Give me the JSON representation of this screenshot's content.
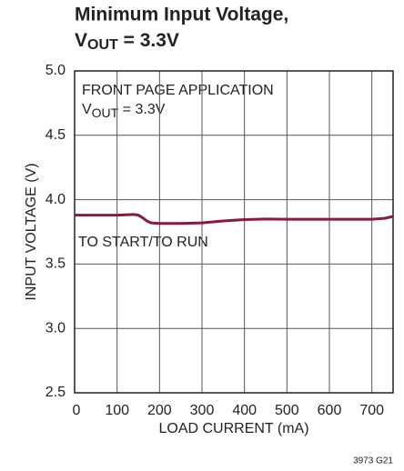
{
  "chart_data": {
    "type": "line",
    "title": "Minimum Input Voltage,",
    "title_line2": [
      "V",
      "OUT",
      " = 3.3V"
    ],
    "annotation": "FRONT PAGE APPLICATION",
    "annotation_line2": [
      "V",
      "OUT",
      " = 3.3V"
    ],
    "curve_label": "TO START/TO RUN",
    "footnote": "3973 G21",
    "xlabel": "LOAD CURRENT (mA)",
    "ylabel": "INPUT VOLTAGE (V)",
    "xlim": [
      0,
      750
    ],
    "ylim": [
      2.5,
      5
    ],
    "xticks": [
      0,
      100,
      200,
      300,
      400,
      500,
      600,
      700
    ],
    "yticks": [
      2.5,
      {
        "value": 3,
        "label": "3.0"
      },
      3.5,
      {
        "value": 4,
        "label": "4.0"
      },
      4.5,
      {
        "value": 5,
        "label": "5.0"
      }
    ],
    "grid": true,
    "series": [
      {
        "name": "TO START/TO RUN",
        "color": "#8b1a3a",
        "x": [
          0,
          50,
          100,
          140,
          150,
          160,
          170,
          180,
          200,
          250,
          300,
          350,
          400,
          450,
          500,
          550,
          600,
          650,
          700,
          730,
          750
        ],
        "values": [
          3.88,
          3.88,
          3.88,
          3.885,
          3.88,
          3.86,
          3.835,
          3.82,
          3.815,
          3.815,
          3.82,
          3.835,
          3.845,
          3.85,
          3.848,
          3.848,
          3.848,
          3.848,
          3.848,
          3.855,
          3.87
        ]
      }
    ]
  }
}
